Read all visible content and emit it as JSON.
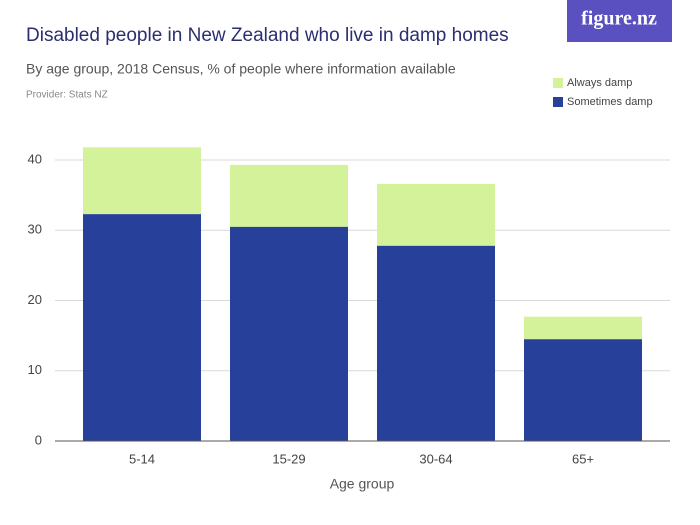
{
  "chart_data": {
    "type": "stacked-bar",
    "title": "Disabled people in New Zealand who live in damp homes",
    "subtitle": "By age group, 2018 Census, % of people where information available",
    "provider": "Provider: Stats NZ",
    "logo": "figure.nz",
    "x_label": "Age group",
    "categories": [
      "5-14",
      "15-29",
      "30-64",
      "65+"
    ],
    "series": [
      {
        "name": "Sometimes damp",
        "color": "#27419a",
        "values": [
          32.3,
          30.5,
          27.8,
          14.5
        ]
      },
      {
        "name": "Always damp",
        "color": "#d4f29a",
        "values": [
          9.5,
          8.8,
          8.8,
          3.2
        ]
      }
    ],
    "ylim": [
      0,
      40
    ],
    "yticks": [
      0,
      10,
      20,
      30,
      40
    ],
    "grid": true
  }
}
